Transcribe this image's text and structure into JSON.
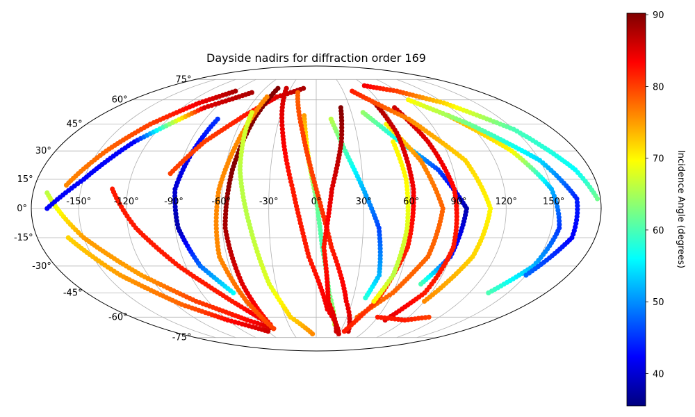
{
  "chart_data": {
    "type": "scatter",
    "title": "Dayside nadirs for diffraction order 169",
    "projection": "mollweide",
    "grid": true,
    "longitude_ticks": [
      "-150°",
      "-120°",
      "-90°",
      "-60°",
      "-30°",
      "0°",
      "30°",
      "60°",
      "90°",
      "120°",
      "150°"
    ],
    "latitude_ticks": [
      "75°",
      "60°",
      "45°",
      "30°",
      "15°",
      "0°",
      "-15°",
      "-30°",
      "-45°",
      "-60°",
      "-75°"
    ],
    "colorbar": {
      "label": "Incidence Angle (degrees)",
      "range": [
        35.5,
        90.2
      ],
      "ticks": [
        "40",
        "50",
        "60",
        "70",
        "80",
        "90"
      ],
      "colormap": "jet"
    },
    "series": [
      {
        "points": [
          [
            -171,
            8,
            66
          ],
          [
            -150,
            -15,
            75
          ],
          [
            -125,
            -35,
            75
          ],
          [
            -100,
            -50,
            80
          ],
          [
            -70,
            -62,
            83
          ],
          [
            -50,
            -68,
            86
          ]
        ]
      },
      {
        "points": [
          [
            -170,
            0,
            42
          ],
          [
            -150,
            15,
            42
          ],
          [
            -130,
            35,
            42
          ],
          [
            -100,
            55,
            85
          ],
          [
            -70,
            65,
            88
          ]
        ]
      },
      {
        "points": [
          [
            -160,
            12,
            76
          ],
          [
            -145,
            30,
            78
          ],
          [
            -130,
            45,
            80
          ],
          [
            -110,
            58,
            84
          ],
          [
            -90,
            66,
            88
          ]
        ]
      },
      {
        "points": [
          [
            -160,
            -15,
            72
          ],
          [
            -140,
            -35,
            75
          ],
          [
            -115,
            -52,
            78
          ],
          [
            -90,
            -62,
            83
          ],
          [
            -60,
            -70,
            86
          ]
        ]
      },
      {
        "points": [
          [
            -80,
            48,
            45
          ],
          [
            -85,
            30,
            42
          ],
          [
            -90,
            10,
            40
          ],
          [
            -88,
            -10,
            38
          ],
          [
            -80,
            -30,
            48
          ],
          [
            -65,
            -45,
            56
          ]
        ]
      },
      {
        "points": [
          [
            -130,
            10,
            82
          ],
          [
            -115,
            -10,
            82
          ],
          [
            -95,
            -30,
            82
          ],
          [
            -70,
            -50,
            82
          ],
          [
            -50,
            -65,
            85
          ]
        ]
      },
      {
        "points": [
          [
            -95,
            18,
            80
          ],
          [
            -80,
            35,
            80
          ],
          [
            -60,
            50,
            82
          ],
          [
            -40,
            62,
            85
          ],
          [
            -15,
            68,
            88
          ]
        ]
      },
      {
        "points": [
          [
            -45,
            68,
            90
          ],
          [
            -50,
            50,
            90
          ],
          [
            -55,
            20,
            90
          ],
          [
            -58,
            -10,
            88
          ],
          [
            -55,
            -40,
            85
          ],
          [
            -50,
            -65,
            82
          ]
        ]
      },
      {
        "points": [
          [
            -50,
            62,
            76
          ],
          [
            -55,
            40,
            76
          ],
          [
            -62,
            10,
            76
          ],
          [
            -65,
            -25,
            76
          ],
          [
            -58,
            -50,
            78
          ],
          [
            -50,
            -68,
            80
          ]
        ]
      },
      {
        "points": [
          [
            -55,
            52,
            68
          ],
          [
            -50,
            20,
            66
          ],
          [
            -42,
            -10,
            66
          ],
          [
            -35,
            -40,
            68
          ],
          [
            -25,
            -60,
            72
          ],
          [
            -5,
            -72,
            76
          ]
        ]
      },
      {
        "points": [
          [
            -10,
            50,
            75
          ],
          [
            -5,
            25,
            68
          ],
          [
            0,
            5,
            62
          ],
          [
            4,
            -20,
            60
          ],
          [
            10,
            -45,
            62
          ],
          [
            20,
            -65,
            66
          ]
        ]
      },
      {
        "points": [
          [
            -20,
            65,
            78
          ],
          [
            -10,
            40,
            80
          ],
          [
            0,
            10,
            80
          ],
          [
            10,
            -20,
            82
          ],
          [
            25,
            -50,
            84
          ],
          [
            40,
            -70,
            86
          ]
        ]
      },
      {
        "points": [
          [
            -35,
            68,
            86
          ],
          [
            -25,
            40,
            84
          ],
          [
            -15,
            10,
            82
          ],
          [
            -5,
            -25,
            82
          ],
          [
            10,
            -55,
            84
          ],
          [
            30,
            -72,
            86
          ]
        ]
      },
      {
        "points": [
          [
            12,
            48,
            66
          ],
          [
            20,
            30,
            60
          ],
          [
            30,
            10,
            52
          ],
          [
            40,
            -10,
            46
          ],
          [
            45,
            -35,
            52
          ],
          [
            40,
            -48,
            58
          ]
        ]
      },
      {
        "points": [
          [
            22,
            55,
            90
          ],
          [
            18,
            35,
            88
          ],
          [
            10,
            10,
            85
          ],
          [
            5,
            -20,
            82
          ],
          [
            10,
            -50,
            84
          ],
          [
            25,
            -70,
            86
          ]
        ]
      },
      {
        "points": [
          [
            40,
            52,
            64
          ],
          [
            60,
            35,
            56
          ],
          [
            80,
            20,
            46
          ],
          [
            95,
            0,
            38
          ],
          [
            90,
            -25,
            44
          ],
          [
            78,
            -40,
            60
          ]
        ]
      },
      {
        "points": [
          [
            55,
            45,
            70
          ],
          [
            70,
            25,
            76
          ],
          [
            80,
            0,
            78
          ],
          [
            75,
            -25,
            78
          ],
          [
            60,
            -45,
            78
          ],
          [
            40,
            -60,
            78
          ]
        ]
      },
      {
        "points": [
          [
            55,
            58,
            88
          ],
          [
            60,
            40,
            86
          ],
          [
            62,
            10,
            84
          ],
          [
            60,
            -20,
            82
          ],
          [
            50,
            -50,
            80
          ],
          [
            35,
            -70,
            82
          ]
        ]
      },
      {
        "points": [
          [
            70,
            55,
            86
          ],
          [
            80,
            35,
            85
          ],
          [
            88,
            10,
            83
          ],
          [
            90,
            -20,
            82
          ],
          [
            85,
            -45,
            82
          ],
          [
            70,
            -62,
            85
          ]
        ]
      },
      {
        "points": [
          [
            55,
            35,
            70
          ],
          [
            58,
            15,
            70
          ],
          [
            58,
            -10,
            68
          ],
          [
            55,
            -35,
            66
          ],
          [
            48,
            -50,
            70
          ]
        ]
      },
      {
        "points": [
          [
            60,
            70,
            84
          ],
          [
            90,
            66,
            80
          ],
          [
            120,
            58,
            72
          ],
          [
            150,
            42,
            60
          ],
          [
            170,
            20,
            56
          ],
          [
            178,
            5,
            62
          ]
        ]
      },
      {
        "points": [
          [
            110,
            50,
            74
          ],
          [
            135,
            30,
            70
          ],
          [
            150,
            10,
            52
          ],
          [
            155,
            -10,
            45
          ],
          [
            150,
            -30,
            52
          ],
          [
            135,
            -45,
            60
          ]
        ]
      },
      {
        "points": [
          [
            90,
            60,
            70
          ],
          [
            120,
            45,
            62
          ],
          [
            150,
            25,
            54
          ],
          [
            165,
            5,
            44
          ],
          [
            165,
            -15,
            42
          ],
          [
            150,
            -35,
            48
          ]
        ]
      },
      {
        "points": [
          [
            40,
            66,
            82
          ],
          [
            75,
            48,
            76
          ],
          [
            100,
            25,
            72
          ],
          [
            110,
            0,
            70
          ],
          [
            105,
            -25,
            72
          ],
          [
            90,
            -50,
            76
          ]
        ]
      },
      {
        "points": [
          [
            60,
            -60,
            82
          ],
          [
            90,
            -62,
            82
          ],
          [
            110,
            -60,
            80
          ]
        ]
      }
    ]
  }
}
